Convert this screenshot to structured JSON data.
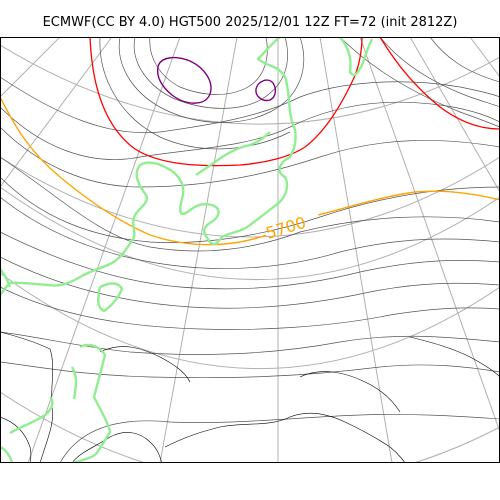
{
  "title": "ECMWF(CC BY 4.0) HGT500 2025/12/01 12Z FT=72 (init 2812Z)",
  "map": {
    "field": "HGT500",
    "contour_label": "5700",
    "colors": {
      "contour_5700": "#ffa500",
      "contour_red": "#ff0000",
      "contour_low": "#800080",
      "contour_other": "#555555",
      "borders": "#90ee90",
      "graticule": "#b0b0b0",
      "coastline": "#000000"
    }
  }
}
